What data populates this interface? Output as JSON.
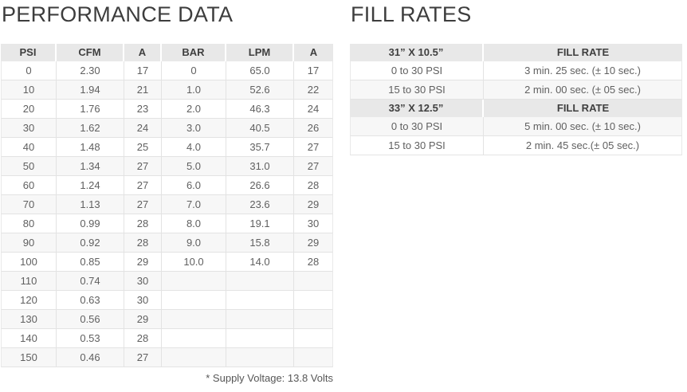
{
  "performance": {
    "title": "PERFORMANCE DATA",
    "columns": [
      "PSI",
      "CFM",
      "A",
      "BAR",
      "LPM",
      "A"
    ],
    "rows": [
      [
        "0",
        "2.30",
        "17",
        "0",
        "65.0",
        "17"
      ],
      [
        "10",
        "1.94",
        "21",
        "1.0",
        "52.6",
        "22"
      ],
      [
        "20",
        "1.76",
        "23",
        "2.0",
        "46.3",
        "24"
      ],
      [
        "30",
        "1.62",
        "24",
        "3.0",
        "40.5",
        "26"
      ],
      [
        "40",
        "1.48",
        "25",
        "4.0",
        "35.7",
        "27"
      ],
      [
        "50",
        "1.34",
        "27",
        "5.0",
        "31.0",
        "27"
      ],
      [
        "60",
        "1.24",
        "27",
        "6.0",
        "26.6",
        "28"
      ],
      [
        "70",
        "1.13",
        "27",
        "7.0",
        "23.6",
        "29"
      ],
      [
        "80",
        "0.99",
        "28",
        "8.0",
        "19.1",
        "30"
      ],
      [
        "90",
        "0.92",
        "28",
        "9.0",
        "15.8",
        "29"
      ],
      [
        "100",
        "0.85",
        "29",
        "10.0",
        "14.0",
        "28"
      ],
      [
        "110",
        "0.74",
        "30",
        "",
        "",
        ""
      ],
      [
        "120",
        "0.63",
        "30",
        "",
        "",
        ""
      ],
      [
        "130",
        "0.56",
        "29",
        "",
        "",
        ""
      ],
      [
        "140",
        "0.53",
        "28",
        "",
        "",
        ""
      ],
      [
        "150",
        "0.46",
        "27",
        "",
        "",
        ""
      ]
    ],
    "footnote": "* Supply Voltage: 13.8 Volts"
  },
  "fill_rates": {
    "title": "FILL RATES",
    "sections": [
      {
        "size_label": "31” X 10.5”",
        "rate_label": "FILL RATE",
        "rows": [
          [
            "0 to 30 PSI",
            "3 min. 25 sec. (± 10 sec.)"
          ],
          [
            "15 to 30 PSI",
            "2 min. 00 sec. (± 05 sec.)"
          ]
        ]
      },
      {
        "size_label": "33” X 12.5”",
        "rate_label": "FILL RATE",
        "rows": [
          [
            "0 to 30 PSI",
            "5 min. 00 sec. (± 10 sec.)"
          ],
          [
            "15 to 30 PSI",
            "2 min. 45 sec.(± 05 sec.)"
          ]
        ]
      }
    ]
  },
  "colors": {
    "header_bg": "#e8e8e8",
    "stripe_bg": "#f7f7f7",
    "border": "#e3e3e3",
    "title_text": "#3d3d3d",
    "header_text": "#3f3f3f",
    "body_text": "#606060"
  }
}
